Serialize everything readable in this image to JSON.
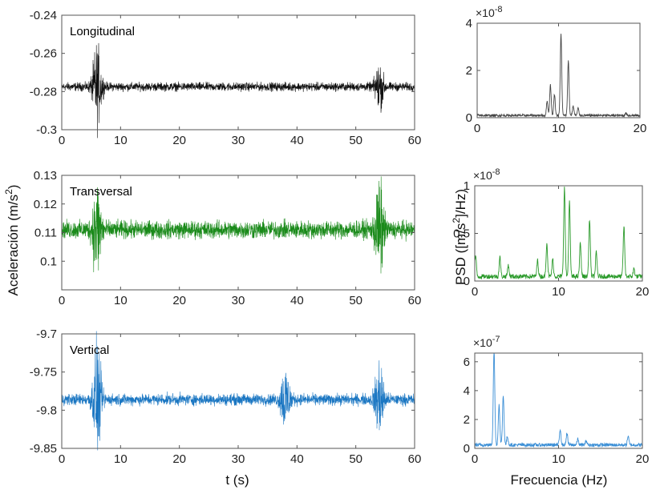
{
  "chart_data": [
    {
      "id": "time-long",
      "type": "line",
      "panel_label": "Longitudinal",
      "color": "#111111",
      "xlim": [
        0,
        60
      ],
      "ylim": [
        -0.3,
        -0.24
      ],
      "xticks": [
        0,
        10,
        20,
        30,
        40,
        50,
        60
      ],
      "yticks": [
        -0.3,
        -0.28,
        -0.26,
        -0.24
      ],
      "xtick_labels": [
        "0",
        "10",
        "20",
        "30",
        "40",
        "50",
        "60"
      ],
      "ytick_labels": [
        "-0.3",
        "-0.28",
        "-0.26",
        "-0.24"
      ],
      "baseline": -0.2775,
      "noise_amplitude": 0.0018,
      "bursts": [
        {
          "t": 6,
          "peak_amplitude": 0.017
        },
        {
          "t": 54,
          "peak_amplitude": 0.009
        }
      ]
    },
    {
      "id": "time-trans",
      "type": "line",
      "panel_label": "Transversal",
      "color": "#1a8a1a",
      "xlim": [
        0,
        60
      ],
      "ylim": [
        0.09,
        0.13
      ],
      "xticks": [
        0,
        10,
        20,
        30,
        40,
        50,
        60
      ],
      "yticks": [
        0.1,
        0.11,
        0.12,
        0.13
      ],
      "xtick_labels": [
        "0",
        "10",
        "20",
        "30",
        "40",
        "50",
        "60"
      ],
      "ytick_labels": [
        "0.1",
        "0.11",
        "0.12",
        "0.13"
      ],
      "baseline": 0.111,
      "noise_amplitude": 0.0025,
      "bursts": [
        {
          "t": 6,
          "peak_amplitude": 0.013
        },
        {
          "t": 54,
          "peak_amplitude": 0.013
        }
      ]
    },
    {
      "id": "time-vert",
      "type": "line",
      "panel_label": "Vertical",
      "color": "#1a76c2",
      "xlim": [
        0,
        60
      ],
      "ylim": [
        -9.85,
        -9.7
      ],
      "xticks": [
        0,
        10,
        20,
        30,
        40,
        50,
        60
      ],
      "yticks": [
        -9.85,
        -9.8,
        -9.75,
        -9.7
      ],
      "xtick_labels": [
        "0",
        "10",
        "20",
        "30",
        "40",
        "50",
        "60"
      ],
      "ytick_labels": [
        "-9.85",
        "-9.8",
        "-9.75",
        "-9.7"
      ],
      "baseline": -9.786,
      "noise_amplitude": 0.006,
      "bursts": [
        {
          "t": 6,
          "peak_amplitude": 0.053
        },
        {
          "t": 38,
          "peak_amplitude": 0.035
        },
        {
          "t": 54,
          "peak_amplitude": 0.04
        }
      ]
    },
    {
      "id": "psd-long",
      "type": "line",
      "color": "#444444",
      "exponent": "×10",
      "exponent_power": "-8",
      "xlim": [
        0,
        20
      ],
      "ylim": [
        0,
        4
      ],
      "xticks": [
        0,
        10,
        20
      ],
      "yticks": [
        0,
        2,
        4
      ],
      "xtick_labels": [
        "0",
        "10",
        "20"
      ],
      "ytick_labels": [
        "0",
        "2",
        "4"
      ],
      "noise_level": 0.02,
      "peaks": [
        {
          "f": 8.6,
          "value": 0.6
        },
        {
          "f": 9.0,
          "value": 1.3
        },
        {
          "f": 9.5,
          "value": 0.9
        },
        {
          "f": 10.3,
          "value": 3.45
        },
        {
          "f": 11.2,
          "value": 2.3
        },
        {
          "f": 11.8,
          "value": 0.4
        },
        {
          "f": 12.4,
          "value": 0.3
        },
        {
          "f": 18.3,
          "value": 0.1
        }
      ]
    },
    {
      "id": "psd-trans",
      "type": "line",
      "color": "#2a9a2a",
      "exponent": "×10",
      "exponent_power": "-8",
      "xlim": [
        0,
        20
      ],
      "ylim": [
        0,
        1
      ],
      "xticks": [
        0,
        10,
        20
      ],
      "yticks": [
        0,
        0.5,
        1
      ],
      "xtick_labels": [
        "0",
        "10",
        "20"
      ],
      "ytick_labels": [
        "0",
        "0.5",
        "1"
      ],
      "noise_level": 0.04,
      "peaks": [
        {
          "f": 0.1,
          "value": 0.22
        },
        {
          "f": 3.0,
          "value": 0.2
        },
        {
          "f": 4.0,
          "value": 0.12
        },
        {
          "f": 7.5,
          "value": 0.17
        },
        {
          "f": 8.6,
          "value": 0.35
        },
        {
          "f": 9.3,
          "value": 0.18
        },
        {
          "f": 10.7,
          "value": 0.93
        },
        {
          "f": 11.3,
          "value": 0.78
        },
        {
          "f": 12.6,
          "value": 0.35
        },
        {
          "f": 13.7,
          "value": 0.6
        },
        {
          "f": 14.5,
          "value": 0.25
        },
        {
          "f": 17.8,
          "value": 0.52
        },
        {
          "f": 19.0,
          "value": 0.08
        }
      ]
    },
    {
      "id": "psd-vert",
      "type": "line",
      "color": "#3b8fd6",
      "exponent": "×10",
      "exponent_power": "-7",
      "xlim": [
        0,
        20
      ],
      "ylim": [
        0,
        6.6
      ],
      "xticks": [
        0,
        10,
        20
      ],
      "yticks": [
        0,
        2,
        4,
        6
      ],
      "xtick_labels": [
        "0",
        "10",
        "20"
      ],
      "ytick_labels": [
        "0",
        "2",
        "4",
        "6"
      ],
      "noise_level": 0.03,
      "peaks": [
        {
          "f": 2.3,
          "value": 6.6
        },
        {
          "f": 2.9,
          "value": 2.8
        },
        {
          "f": 3.4,
          "value": 3.4
        },
        {
          "f": 3.9,
          "value": 0.6
        },
        {
          "f": 10.2,
          "value": 1.1
        },
        {
          "f": 11.0,
          "value": 0.8
        },
        {
          "f": 12.3,
          "value": 0.4
        },
        {
          "f": 13.3,
          "value": 0.3
        },
        {
          "f": 18.3,
          "value": 0.6
        }
      ]
    }
  ],
  "labels": {
    "time_ylabel": "Aceleración (m/s",
    "time_ylabel_power": "2",
    "time_ylabel_close": ")",
    "time_xlabel": "t (s)",
    "psd_ylabel": "PSD ([m/s",
    "psd_ylabel_power": "2",
    "psd_ylabel_close": "]/Hz)",
    "psd_xlabel": "Frecuencia (Hz)"
  }
}
